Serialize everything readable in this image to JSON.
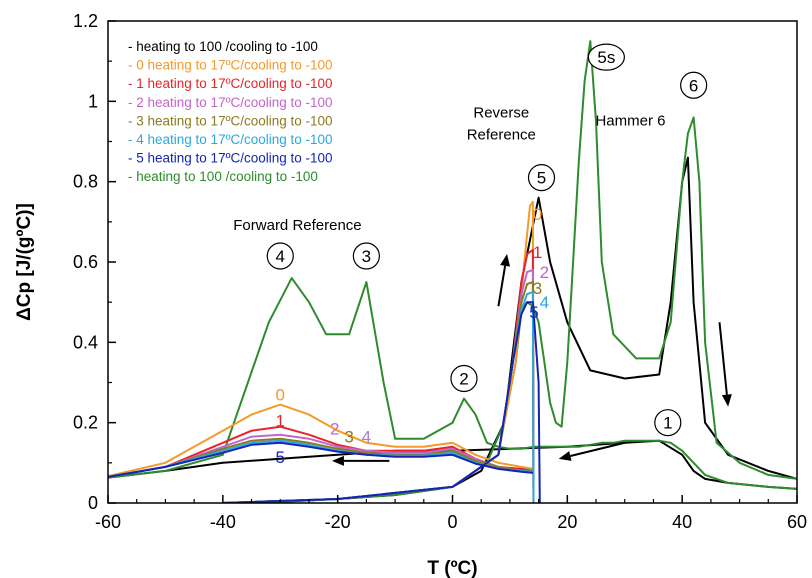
{
  "chart_data": {
    "type": "line",
    "title": "",
    "xlabel": "T (ºC)",
    "ylabel": "ΔCp [J/(gºC)]",
    "xlim": [
      -60,
      60
    ],
    "ylim": [
      0,
      1.2
    ],
    "xticks": [
      -60,
      -40,
      -20,
      0,
      20,
      40,
      60
    ],
    "yticks": [
      0,
      0.2,
      0.4,
      0.6,
      0.8,
      1,
      1.2
    ],
    "xtick_labels": [
      "-60",
      "-40",
      "-20",
      "0",
      "20",
      "40",
      "60"
    ],
    "ytick_labels": [
      "0",
      "0.2",
      "0.4",
      "0.6",
      "0.8",
      "1",
      "1.2"
    ],
    "grid": false,
    "legend_position": "top-left",
    "legend": [
      {
        "label": "- heating to 100 /cooling to -100",
        "color": "#000000"
      },
      {
        "label": "- 0  heating to 17ºC/cooling to -100",
        "color": "#f39a2b"
      },
      {
        "label": "- 1  heating to 17ºC/cooling to -100",
        "color": "#e8242a"
      },
      {
        "label": "- 2  heating to 17ºC/cooling to -100",
        "color": "#c266c9"
      },
      {
        "label": "- 3  heating to 17ºC/cooling to -100",
        "color": "#8c7a1e"
      },
      {
        "label": "- 4  heating to 17ºC/cooling to -100",
        "color": "#29a9e0"
      },
      {
        "label": "- 5  heating to 17ºC/cooling to -100",
        "color": "#1424b4"
      },
      {
        "label": "- heating to 100 /cooling to -100",
        "color": "#2e8b2e"
      }
    ],
    "series": [
      {
        "color": "#000000",
        "part": "cooling",
        "x": [
          -62,
          -50,
          -40,
          -30,
          -20,
          -10,
          0,
          10,
          20,
          30,
          36,
          40,
          42,
          44,
          48,
          55,
          60
        ],
        "y": [
          0.06,
          0.08,
          0.1,
          0.11,
          0.12,
          0.13,
          0.13,
          0.135,
          0.14,
          0.15,
          0.155,
          0.12,
          0.08,
          0.06,
          0.05,
          0.04,
          0.035
        ]
      },
      {
        "color": "#000000",
        "part": "heating",
        "x": [
          -40,
          -30,
          -20,
          -10,
          0,
          5,
          9,
          12,
          15,
          17,
          20,
          24,
          30,
          36,
          38,
          40,
          41,
          42,
          44,
          48,
          55,
          60
        ],
        "y": [
          0.0,
          0.003,
          0.01,
          0.02,
          0.04,
          0.08,
          0.2,
          0.55,
          0.76,
          0.6,
          0.45,
          0.33,
          0.31,
          0.32,
          0.5,
          0.8,
          0.86,
          0.5,
          0.2,
          0.12,
          0.08,
          0.06
        ]
      },
      {
        "color": "#2e8b2e",
        "part": "cooling",
        "x": [
          -62,
          -50,
          -40,
          -32,
          -28,
          -25,
          -22,
          -18,
          -15,
          -12,
          -10,
          -5,
          0,
          2,
          4,
          6,
          8,
          10,
          12,
          14,
          16,
          18,
          20,
          22,
          24,
          26,
          28,
          30,
          34,
          36,
          38,
          40,
          42,
          44,
          48,
          55,
          60
        ],
        "y": [
          0.06,
          0.08,
          0.12,
          0.45,
          0.56,
          0.5,
          0.42,
          0.42,
          0.55,
          0.3,
          0.16,
          0.16,
          0.2,
          0.26,
          0.22,
          0.15,
          0.14,
          0.135,
          0.135,
          0.14,
          0.14,
          0.14,
          0.14,
          0.14,
          0.145,
          0.15,
          0.15,
          0.155,
          0.155,
          0.155,
          0.15,
          0.13,
          0.1,
          0.07,
          0.05,
          0.04,
          0.035
        ]
      },
      {
        "color": "#2e8b2e",
        "part": "heating",
        "x": [
          -40,
          -30,
          -20,
          -10,
          0,
          6,
          9,
          11,
          12,
          13,
          14,
          15,
          16,
          17,
          18,
          19,
          20,
          21,
          22,
          23,
          24,
          25,
          26,
          28,
          32,
          36,
          38,
          40,
          41,
          42,
          43,
          44,
          46,
          50,
          55,
          60
        ],
        "y": [
          0.0,
          0.003,
          0.01,
          0.02,
          0.04,
          0.1,
          0.2,
          0.35,
          0.48,
          0.5,
          0.49,
          0.45,
          0.35,
          0.25,
          0.2,
          0.19,
          0.35,
          0.6,
          0.85,
          1.05,
          1.15,
          0.95,
          0.6,
          0.42,
          0.36,
          0.36,
          0.45,
          0.8,
          0.92,
          0.96,
          0.8,
          0.4,
          0.15,
          0.1,
          0.07,
          0.06
        ]
      },
      {
        "color": "#f39a2b",
        "part": "cooling",
        "x": [
          -62,
          -50,
          -40,
          -35,
          -30,
          -25,
          -20,
          -15,
          -10,
          -5,
          0,
          4,
          8,
          12,
          14
        ],
        "y": [
          0.06,
          0.1,
          0.18,
          0.22,
          0.245,
          0.22,
          0.18,
          0.15,
          0.14,
          0.14,
          0.15,
          0.12,
          0.1,
          0.09,
          0.085
        ]
      },
      {
        "color": "#f39a2b",
        "part": "heating",
        "x": [
          -40,
          -20,
          0,
          8,
          11,
          12.5,
          13.5,
          14,
          14.1
        ],
        "y": [
          0.0,
          0.01,
          0.04,
          0.12,
          0.35,
          0.6,
          0.74,
          0.75,
          0.0
        ]
      },
      {
        "color": "#e8242a",
        "part": "cooling",
        "x": [
          -62,
          -50,
          -40,
          -35,
          -30,
          -25,
          -20,
          -15,
          -10,
          -5,
          0,
          4,
          8,
          12,
          14
        ],
        "y": [
          0.06,
          0.09,
          0.15,
          0.18,
          0.19,
          0.17,
          0.145,
          0.13,
          0.13,
          0.13,
          0.14,
          0.11,
          0.09,
          0.085,
          0.08
        ]
      },
      {
        "color": "#e8242a",
        "part": "heating",
        "x": [
          -40,
          -20,
          0,
          8,
          10.5,
          12,
          13,
          14,
          14.1
        ],
        "y": [
          0.0,
          0.01,
          0.04,
          0.12,
          0.35,
          0.55,
          0.62,
          0.63,
          0.0
        ]
      },
      {
        "color": "#c266c9",
        "part": "cooling",
        "x": [
          -62,
          -50,
          -40,
          -35,
          -30,
          -25,
          -20,
          -15,
          -10,
          -5,
          0,
          4,
          8,
          12,
          14
        ],
        "y": [
          0.06,
          0.09,
          0.14,
          0.165,
          0.17,
          0.16,
          0.14,
          0.13,
          0.125,
          0.125,
          0.135,
          0.11,
          0.09,
          0.08,
          0.08
        ]
      },
      {
        "color": "#c266c9",
        "part": "heating",
        "x": [
          -40,
          -20,
          0,
          8,
          10.5,
          12,
          13,
          14,
          14.1
        ],
        "y": [
          0.0,
          0.01,
          0.04,
          0.12,
          0.35,
          0.52,
          0.575,
          0.58,
          0.0
        ]
      },
      {
        "color": "#8c7a1e",
        "part": "cooling",
        "x": [
          -62,
          -50,
          -40,
          -35,
          -30,
          -25,
          -20,
          -15,
          -10,
          -5,
          0,
          4,
          8,
          12,
          14
        ],
        "y": [
          0.06,
          0.09,
          0.135,
          0.155,
          0.16,
          0.15,
          0.135,
          0.125,
          0.12,
          0.12,
          0.13,
          0.105,
          0.09,
          0.08,
          0.08
        ]
      },
      {
        "color": "#8c7a1e",
        "part": "heating",
        "x": [
          -40,
          -20,
          0,
          8,
          10.5,
          12,
          13,
          14,
          14.1
        ],
        "y": [
          0.0,
          0.01,
          0.04,
          0.12,
          0.35,
          0.5,
          0.545,
          0.55,
          0.0
        ]
      },
      {
        "color": "#29a9e0",
        "part": "cooling",
        "x": [
          -62,
          -50,
          -40,
          -35,
          -30,
          -25,
          -20,
          -15,
          -10,
          -5,
          0,
          4,
          8,
          12,
          14
        ],
        "y": [
          0.06,
          0.09,
          0.13,
          0.15,
          0.155,
          0.145,
          0.13,
          0.12,
          0.118,
          0.118,
          0.125,
          0.1,
          0.085,
          0.08,
          0.078
        ]
      },
      {
        "color": "#29a9e0",
        "part": "heating",
        "x": [
          -40,
          -20,
          0,
          8,
          10.5,
          12,
          13,
          14,
          14.1
        ],
        "y": [
          0.0,
          0.01,
          0.04,
          0.12,
          0.35,
          0.48,
          0.52,
          0.525,
          0.0
        ]
      },
      {
        "color": "#1424b4",
        "part": "cooling",
        "x": [
          -62,
          -50,
          -40,
          -35,
          -30,
          -25,
          -20,
          -15,
          -10,
          -5,
          0,
          4,
          8,
          12,
          14
        ],
        "y": [
          0.06,
          0.09,
          0.125,
          0.145,
          0.15,
          0.14,
          0.128,
          0.12,
          0.115,
          0.115,
          0.12,
          0.098,
          0.085,
          0.078,
          0.075
        ]
      },
      {
        "color": "#1424b4",
        "part": "heating",
        "x": [
          -40,
          -20,
          0,
          8,
          10.5,
          12,
          13,
          14,
          15,
          15.2
        ],
        "y": [
          0.0,
          0.01,
          0.04,
          0.12,
          0.35,
          0.47,
          0.5,
          0.5,
          0.3,
          0.0
        ]
      }
    ],
    "annotations": [
      {
        "text": "Forward Reference",
        "x": -27,
        "y": 0.68,
        "kind": "text"
      },
      {
        "text": "Reverse",
        "x": 8.5,
        "y": 0.96,
        "kind": "text"
      },
      {
        "text": "Reference",
        "x": 8.5,
        "y": 0.905,
        "kind": "text"
      },
      {
        "text": "Hammer 6",
        "x": 31,
        "y": 0.94,
        "kind": "text",
        "color": "#2e8b2e"
      },
      {
        "text": "4",
        "x": -30,
        "y": 0.615,
        "kind": "circle"
      },
      {
        "text": "3",
        "x": -15,
        "y": 0.615,
        "kind": "circle"
      },
      {
        "text": "2",
        "x": 2,
        "y": 0.31,
        "kind": "circle"
      },
      {
        "text": "5",
        "x": 15.5,
        "y": 0.81,
        "kind": "circle"
      },
      {
        "text": "5s",
        "x": 26.8,
        "y": 1.11,
        "kind": "circle"
      },
      {
        "text": "6",
        "x": 42,
        "y": 1.04,
        "kind": "circle"
      },
      {
        "text": "1",
        "x": 37.5,
        "y": 0.2,
        "kind": "circle"
      },
      {
        "text": "0",
        "x": -30,
        "y": 0.27,
        "kind": "curve",
        "color": "#f39a2b"
      },
      {
        "text": "1",
        "x": -30,
        "y": 0.205,
        "kind": "curve",
        "color": "#e8242a"
      },
      {
        "text": "2",
        "x": -20.5,
        "y": 0.185,
        "kind": "curve",
        "color": "#c266c9"
      },
      {
        "text": "3",
        "x": -18,
        "y": 0.165,
        "kind": "curve",
        "color": "#8c7a1e"
      },
      {
        "text": "4",
        "x": -15,
        "y": 0.165,
        "kind": "curve",
        "color": "#a57fc8"
      },
      {
        "text": "5",
        "x": -30,
        "y": 0.115,
        "kind": "curve",
        "color": "#1424b4"
      },
      {
        "text": "0",
        "x": 14.8,
        "y": 0.72,
        "kind": "curve",
        "color": "#f39a2b"
      },
      {
        "text": "1",
        "x": 14.8,
        "y": 0.625,
        "kind": "curve",
        "color": "#e8242a"
      },
      {
        "text": "2",
        "x": 16,
        "y": 0.575,
        "kind": "curve",
        "color": "#c266c9"
      },
      {
        "text": "3",
        "x": 14.8,
        "y": 0.535,
        "kind": "curve",
        "color": "#8c7a1e"
      },
      {
        "text": "4",
        "x": 16,
        "y": 0.5,
        "kind": "curve",
        "color": "#29a9e0"
      },
      {
        "text": "5",
        "x": 14.2,
        "y": 0.475,
        "kind": "curve",
        "color": "#1424b4"
      }
    ],
    "arrows": [
      {
        "from": [
          -11,
          0.105
        ],
        "to": [
          -21,
          0.105
        ]
      },
      {
        "from": [
          30,
          0.15
        ],
        "to": [
          18.5,
          0.11
        ]
      },
      {
        "from": [
          8,
          0.49
        ],
        "to": [
          9.5,
          0.62
        ]
      },
      {
        "from": [
          46.5,
          0.45
        ],
        "to": [
          48,
          0.24
        ]
      }
    ]
  }
}
